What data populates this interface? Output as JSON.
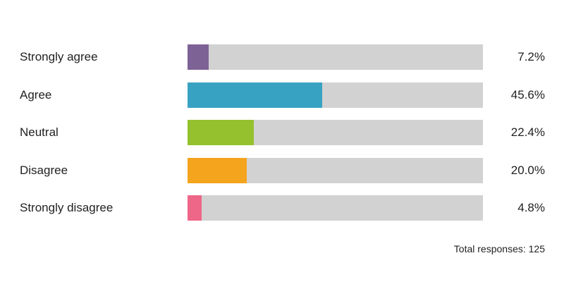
{
  "chart_data": {
    "type": "bar",
    "orientation": "horizontal",
    "xlim": [
      0,
      100
    ],
    "categories": [
      "Strongly agree",
      "Agree",
      "Neutral",
      "Disagree",
      "Strongly disagree"
    ],
    "values": [
      7.2,
      45.6,
      22.4,
      20.0,
      4.8
    ],
    "value_labels": [
      "7.2%",
      "45.6%",
      "22.4%",
      "20.0%",
      "4.8%"
    ],
    "colors": [
      "#7d6295",
      "#38a2c3",
      "#95c12e",
      "#f5a41e",
      "#ee6688"
    ],
    "track_color": "#d2d2d2",
    "grid": false,
    "footnote": "Total responses: 125"
  }
}
